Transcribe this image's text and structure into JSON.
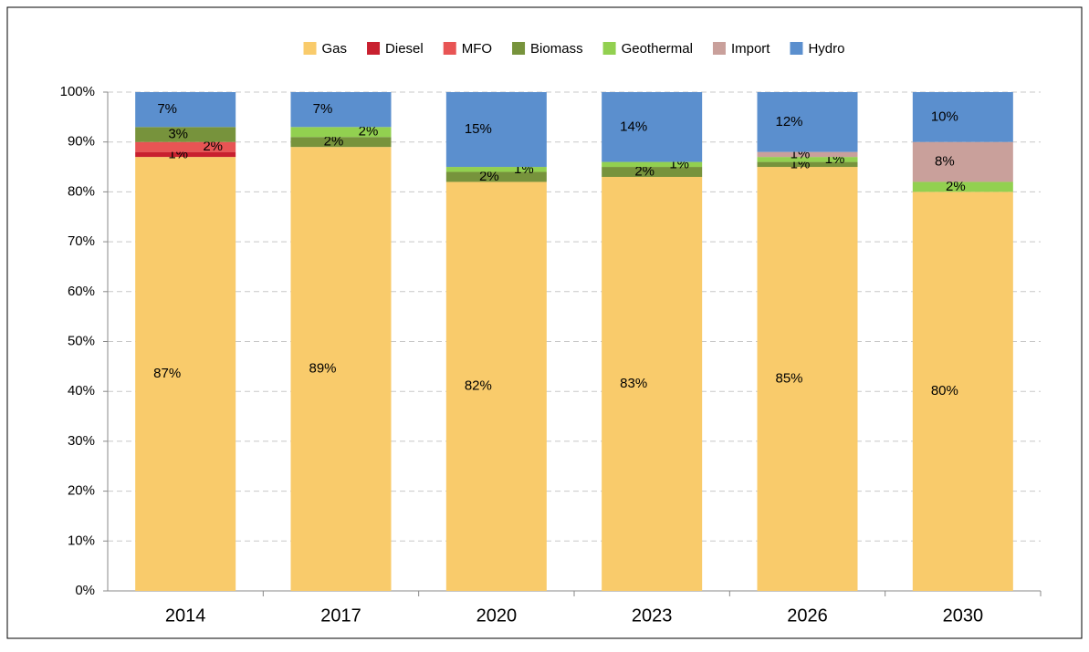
{
  "chart_data": {
    "type": "stacked_bar",
    "categories": [
      "2014",
      "2017",
      "2020",
      "2023",
      "2026",
      "2030"
    ],
    "series": [
      {
        "name": "Gas",
        "color": "#f9cb6b",
        "values": [
          87,
          89,
          82,
          83,
          85,
          80
        ],
        "value_labels": [
          "87%",
          "89%",
          "82%",
          "83%",
          "85%",
          "80%"
        ]
      },
      {
        "name": "Diesel",
        "color": "#c8202f",
        "values": [
          1,
          0,
          0,
          0,
          0,
          0
        ],
        "value_labels": [
          "1%",
          null,
          null,
          null,
          null,
          null
        ]
      },
      {
        "name": "MFO",
        "color": "#e85454",
        "values": [
          2,
          0,
          0,
          0,
          0,
          0
        ],
        "value_labels": [
          "2%",
          null,
          null,
          null,
          null,
          null
        ]
      },
      {
        "name": "Biomass",
        "color": "#77933c",
        "values": [
          3,
          2,
          2,
          2,
          1,
          0
        ],
        "value_labels": [
          "3%",
          "2%",
          "2%",
          "2%",
          "1%",
          null
        ]
      },
      {
        "name": "Geothermal",
        "color": "#92d050",
        "values": [
          0,
          2,
          1,
          1,
          1,
          2
        ],
        "value_labels": [
          null,
          "2%",
          "1%",
          "1%",
          "1%",
          "2%"
        ]
      },
      {
        "name": "Import",
        "color": "#c9a09b",
        "values": [
          0,
          0,
          0,
          0,
          1,
          8
        ],
        "value_labels": [
          null,
          null,
          null,
          null,
          "1%",
          "8%"
        ]
      },
      {
        "name": "Hydro",
        "color": "#5b8fce",
        "values": [
          7,
          7,
          15,
          14,
          12,
          10
        ],
        "value_labels": [
          "7%",
          "7%",
          "15%",
          "14%",
          "12%",
          "10%"
        ]
      }
    ],
    "ylim": [
      0,
      100
    ],
    "yticks": [
      {
        "value": 0,
        "label": "0%"
      },
      {
        "value": 10,
        "label": "10%"
      },
      {
        "value": 20,
        "label": "20%"
      },
      {
        "value": 30,
        "label": "30%"
      },
      {
        "value": 40,
        "label": "40%"
      },
      {
        "value": 50,
        "label": "50%"
      },
      {
        "value": 60,
        "label": "60%"
      },
      {
        "value": 70,
        "label": "70%"
      },
      {
        "value": 80,
        "label": "80%"
      },
      {
        "value": 90,
        "label": "90%"
      },
      {
        "value": 100,
        "label": "100%"
      }
    ],
    "grid": true,
    "legend": "top"
  }
}
